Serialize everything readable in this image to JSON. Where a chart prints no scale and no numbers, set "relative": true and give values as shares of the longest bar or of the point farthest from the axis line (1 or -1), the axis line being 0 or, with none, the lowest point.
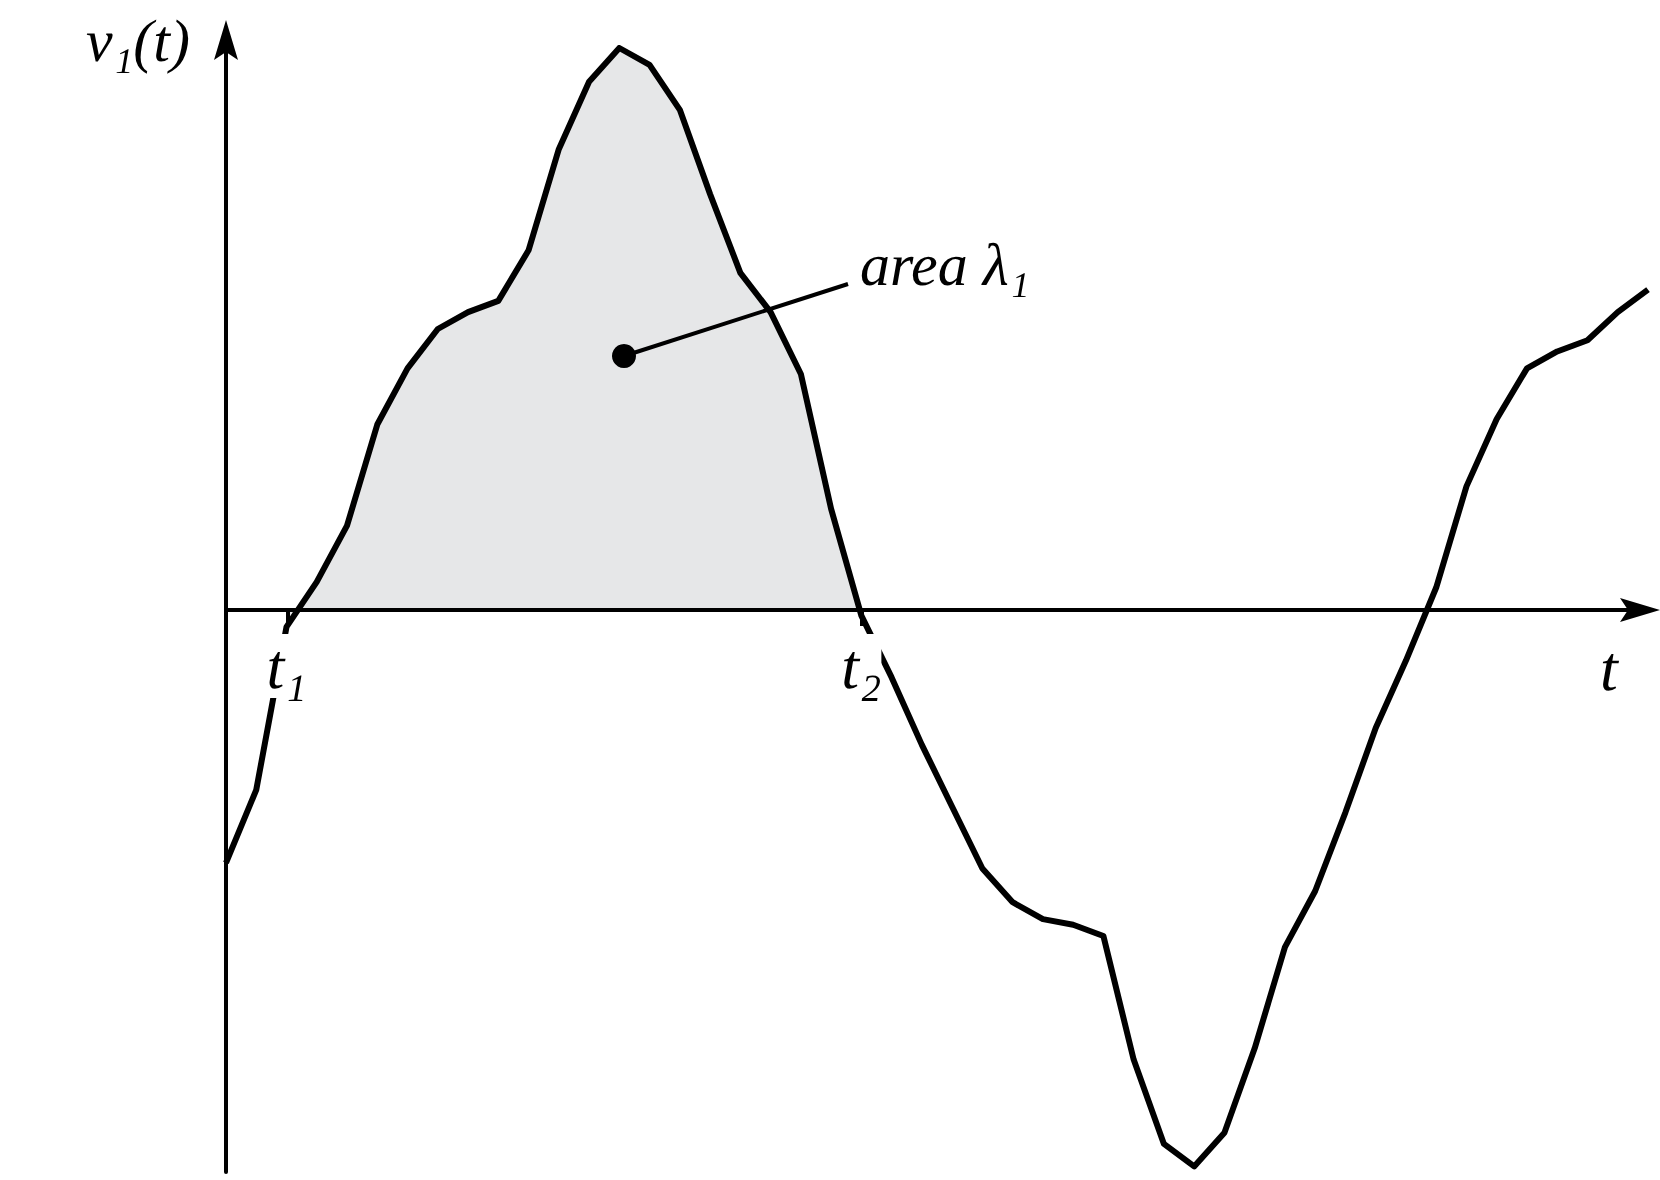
{
  "chart_data": {
    "type": "line",
    "relative": true,
    "ylabel": "v₁(t)",
    "xlabel": "t",
    "tick_labels": "x",
    "marker": "none",
    "categories": [
      null,
      null,
      "t₁",
      null,
      null,
      null,
      null,
      null,
      null,
      null,
      null,
      null,
      null,
      null,
      null,
      null,
      null,
      null,
      null,
      null,
      null,
      "t₂",
      null,
      null,
      null,
      null,
      null,
      null,
      null,
      null,
      null,
      null,
      null,
      null,
      null,
      null,
      null,
      null,
      null,
      null,
      null,
      null,
      null,
      null,
      null,
      null,
      null,
      null
    ],
    "series": [
      {
        "type": "area",
        "color": "#e6e7e8",
        "values": [
          null,
          null,
          -0.03,
          0.05,
          0.15,
          0.33,
          0.43,
          0.5,
          0.53,
          0.55,
          0.64,
          0.82,
          0.94,
          1.0,
          0.97,
          0.89,
          0.74,
          0.6,
          0.53,
          0.42,
          0.18,
          -0.01,
          null,
          null,
          null,
          null,
          null,
          null,
          null,
          null,
          null,
          null,
          null,
          null,
          null,
          null,
          null,
          null,
          null,
          null,
          null,
          null,
          null,
          null,
          null,
          null,
          null,
          null
        ]
      },
      {
        "type": "line",
        "color": "#000000",
        "values": [
          -0.45,
          -0.32,
          -0.03,
          0.05,
          0.15,
          0.33,
          0.43,
          0.5,
          0.53,
          0.55,
          0.64,
          0.82,
          0.94,
          1.0,
          0.97,
          0.89,
          0.74,
          0.6,
          0.53,
          0.42,
          0.18,
          -0.01,
          -0.12,
          -0.24,
          -0.35,
          -0.46,
          -0.52,
          -0.55,
          -0.56,
          -0.58,
          -0.8,
          -0.95,
          -0.99,
          -0.93,
          -0.78,
          -0.6,
          -0.5,
          -0.36,
          -0.21,
          -0.09,
          0.04,
          0.22,
          0.34,
          0.43,
          0.46,
          0.48,
          0.53,
          0.57
        ]
      }
    ],
    "annotations": [
      "area λ₁"
    ]
  }
}
